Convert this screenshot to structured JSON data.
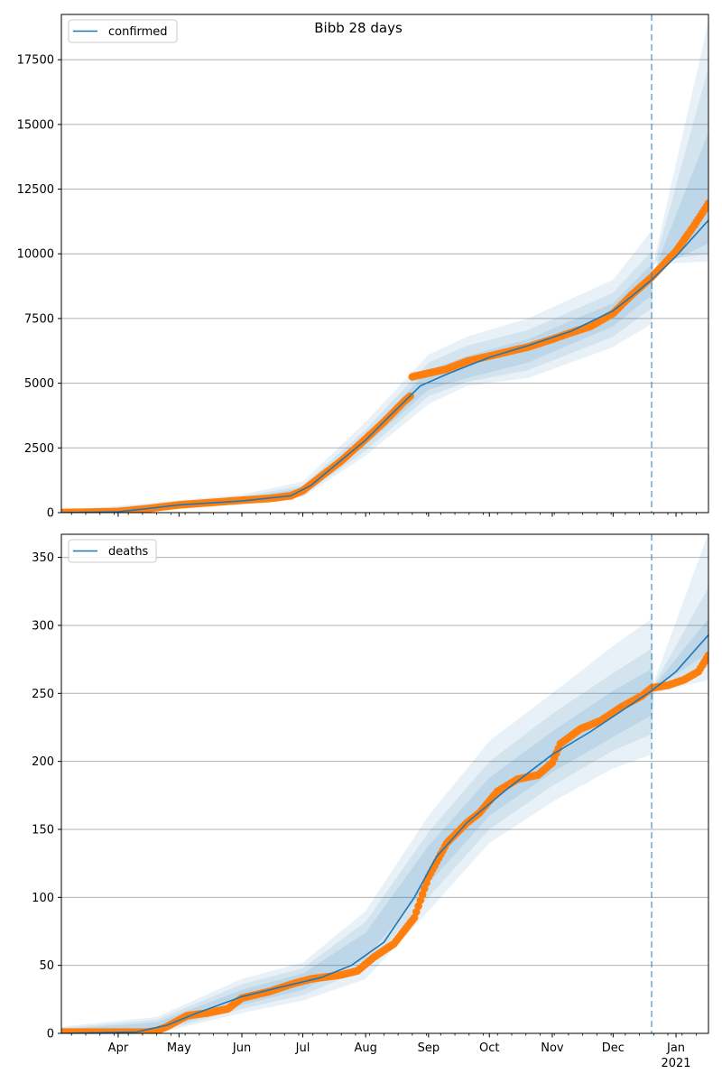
{
  "figure": {
    "title": "Bibb 28 days"
  },
  "x_axis": {
    "start_date": "2020-03-04",
    "end_date": "2021-01-17",
    "forecast_start": "2020-12-20",
    "ticks": [
      {
        "date": "2020-04-01",
        "label": "Apr"
      },
      {
        "date": "2020-05-01",
        "label": "May"
      },
      {
        "date": "2020-06-01",
        "label": "Jun"
      },
      {
        "date": "2020-07-01",
        "label": "Jul"
      },
      {
        "date": "2020-08-01",
        "label": "Aug"
      },
      {
        "date": "2020-09-01",
        "label": "Sep"
      },
      {
        "date": "2020-10-01",
        "label": "Oct"
      },
      {
        "date": "2020-11-01",
        "label": "Nov"
      },
      {
        "date": "2020-12-01",
        "label": "Dec"
      },
      {
        "date": "2021-01-01",
        "label": "Jan",
        "sublabel": "2021"
      }
    ]
  },
  "colors": {
    "model_line": "#1f77b4",
    "observed": "#ff7f0e",
    "band": "#1f77b4",
    "grid": "#b0b0b0",
    "forecast_line": "#1f77b4"
  },
  "chart_data": [
    {
      "type": "line",
      "legend": "confirmed",
      "legend_position": "top-left",
      "grid": "y",
      "ylim": [
        0,
        19250
      ],
      "yticks": [
        0,
        2500,
        5000,
        7500,
        10000,
        12500,
        15000,
        17500
      ],
      "model": [
        [
          "2020-03-04",
          0
        ],
        [
          "2020-04-01",
          30
        ],
        [
          "2020-04-15",
          150
        ],
        [
          "2020-05-01",
          300
        ],
        [
          "2020-06-01",
          450
        ],
        [
          "2020-06-25",
          650
        ],
        [
          "2020-07-05",
          1050
        ],
        [
          "2020-07-15",
          1700
        ],
        [
          "2020-08-01",
          2800
        ],
        [
          "2020-08-15",
          3900
        ],
        [
          "2020-08-28",
          4900
        ],
        [
          "2020-09-10",
          5350
        ],
        [
          "2020-10-01",
          6000
        ],
        [
          "2020-10-20",
          6450
        ],
        [
          "2020-11-10",
          7000
        ],
        [
          "2020-12-01",
          7800
        ],
        [
          "2020-12-10",
          8350
        ],
        [
          "2020-12-20",
          9000
        ],
        [
          "2021-01-01",
          9900
        ],
        [
          "2021-01-17",
          11300
        ]
      ],
      "bands": [
        {
          "lower": [
            [
              "2020-03-04",
              0
            ],
            [
              "2020-06-01",
              400
            ],
            [
              "2020-07-01",
              600
            ],
            [
              "2020-08-01",
              2200
            ],
            [
              "2020-09-01",
              4200
            ],
            [
              "2020-09-20",
              4900
            ],
            [
              "2020-10-20",
              5200
            ],
            [
              "2020-12-01",
              6400
            ],
            [
              "2020-12-20",
              7300
            ],
            [
              "2020-12-21",
              9600
            ],
            [
              "2021-01-17",
              9700
            ]
          ],
          "upper": [
            [
              "2020-03-04",
              60
            ],
            [
              "2020-06-01",
              700
            ],
            [
              "2020-07-01",
              1200
            ],
            [
              "2020-08-01",
              3500
            ],
            [
              "2020-09-01",
              6100
            ],
            [
              "2020-09-20",
              6800
            ],
            [
              "2020-10-20",
              7500
            ],
            [
              "2020-12-01",
              9000
            ],
            [
              "2020-12-20",
              10900
            ],
            [
              "2020-12-21",
              9700
            ],
            [
              "2021-01-17",
              19000
            ]
          ]
        },
        {
          "lower": [
            [
              "2020-03-04",
              0
            ],
            [
              "2020-06-01",
              420
            ],
            [
              "2020-07-01",
              650
            ],
            [
              "2020-08-01",
              2400
            ],
            [
              "2020-09-01",
              4500
            ],
            [
              "2020-09-20",
              5050
            ],
            [
              "2020-10-20",
              5500
            ],
            [
              "2020-12-01",
              6800
            ],
            [
              "2020-12-20",
              7900
            ],
            [
              "2020-12-21",
              9700
            ],
            [
              "2021-01-17",
              10000
            ]
          ],
          "upper": [
            [
              "2020-03-04",
              40
            ],
            [
              "2020-06-01",
              620
            ],
            [
              "2020-07-01",
              1050
            ],
            [
              "2020-08-01",
              3200
            ],
            [
              "2020-09-01",
              5800
            ],
            [
              "2020-09-20",
              6450
            ],
            [
              "2020-10-20",
              7050
            ],
            [
              "2020-12-01",
              8500
            ],
            [
              "2020-12-20",
              10100
            ],
            [
              "2020-12-21",
              9500
            ],
            [
              "2021-01-17",
              17200
            ]
          ]
        },
        {
          "lower": [
            [
              "2020-03-04",
              0
            ],
            [
              "2020-06-01",
              440
            ],
            [
              "2020-07-01",
              700
            ],
            [
              "2020-08-01",
              2600
            ],
            [
              "2020-09-01",
              4750
            ],
            [
              "2020-09-20",
              5200
            ],
            [
              "2020-10-20",
              5800
            ],
            [
              "2020-12-01",
              7200
            ],
            [
              "2020-12-20",
              8400
            ],
            [
              "2020-12-21",
              9400
            ],
            [
              "2021-01-17",
              10400
            ]
          ],
          "upper": [
            [
              "2020-03-04",
              25
            ],
            [
              "2020-06-01",
              560
            ],
            [
              "2020-07-01",
              950
            ],
            [
              "2020-08-01",
              3000
            ],
            [
              "2020-09-01",
              5500
            ],
            [
              "2020-09-20",
              6050
            ],
            [
              "2020-10-20",
              6700
            ],
            [
              "2020-12-01",
              8100
            ],
            [
              "2020-12-20",
              9600
            ],
            [
              "2020-12-21",
              9300
            ],
            [
              "2021-01-17",
              14700
            ]
          ]
        }
      ],
      "observed": [
        [
          "2020-03-04",
          5
        ],
        [
          "2020-04-01",
          40
        ],
        [
          "2020-04-15",
          150
        ],
        [
          "2020-05-01",
          300
        ],
        [
          "2020-05-15",
          380
        ],
        [
          "2020-06-01",
          480
        ],
        [
          "2020-06-15",
          550
        ],
        [
          "2020-06-25",
          650
        ],
        [
          "2020-07-01",
          850
        ],
        [
          "2020-07-10",
          1400
        ],
        [
          "2020-07-20",
          2000
        ],
        [
          "2020-08-01",
          2850
        ],
        [
          "2020-08-10",
          3500
        ],
        [
          "2020-08-20",
          4300
        ],
        [
          "2020-08-23",
          4500
        ],
        [
          "2020-08-24",
          5250
        ],
        [
          "2020-09-10",
          5550
        ],
        [
          "2020-09-20",
          5850
        ],
        [
          "2020-10-01",
          6050
        ],
        [
          "2020-10-20",
          6400
        ],
        [
          "2020-11-01",
          6700
        ],
        [
          "2020-11-10",
          6950
        ],
        [
          "2020-11-20",
          7200
        ],
        [
          "2020-12-01",
          7700
        ],
        [
          "2020-12-10",
          8400
        ],
        [
          "2020-12-20",
          9100
        ],
        [
          "2021-01-01",
          10100
        ],
        [
          "2021-01-10",
          11100
        ],
        [
          "2021-01-17",
          11950
        ]
      ]
    },
    {
      "type": "line",
      "legend": "deaths",
      "legend_position": "top-left",
      "grid": "y",
      "ylim": [
        0,
        367
      ],
      "yticks": [
        0,
        50,
        100,
        150,
        200,
        250,
        300,
        350
      ],
      "model": [
        [
          "2020-03-04",
          0
        ],
        [
          "2020-04-10",
          1
        ],
        [
          "2020-04-25",
          6
        ],
        [
          "2020-05-10",
          15
        ],
        [
          "2020-06-01",
          27
        ],
        [
          "2020-06-20",
          34
        ],
        [
          "2020-07-10",
          41
        ],
        [
          "2020-07-25",
          50
        ],
        [
          "2020-08-10",
          67
        ],
        [
          "2020-08-25",
          100
        ],
        [
          "2020-09-05",
          130
        ],
        [
          "2020-09-20",
          155
        ],
        [
          "2020-10-10",
          180
        ],
        [
          "2020-11-01",
          205
        ],
        [
          "2020-11-20",
          222
        ],
        [
          "2020-12-10",
          242
        ],
        [
          "2020-12-20",
          252
        ],
        [
          "2021-01-01",
          266
        ],
        [
          "2021-01-17",
          293
        ]
      ],
      "bands": [
        {
          "lower": [
            [
              "2020-03-04",
              0
            ],
            [
              "2020-04-20",
              0
            ],
            [
              "2020-06-01",
              15
            ],
            [
              "2020-07-01",
              24
            ],
            [
              "2020-08-01",
              40
            ],
            [
              "2020-09-01",
              90
            ],
            [
              "2020-10-01",
              140
            ],
            [
              "2020-11-01",
              170
            ],
            [
              "2020-12-01",
              195
            ],
            [
              "2020-12-20",
              205
            ],
            [
              "2020-12-21",
              250
            ],
            [
              "2021-01-17",
              260
            ]
          ],
          "upper": [
            [
              "2020-03-04",
              5
            ],
            [
              "2020-04-20",
              12
            ],
            [
              "2020-06-01",
              40
            ],
            [
              "2020-07-01",
              52
            ],
            [
              "2020-08-01",
              90
            ],
            [
              "2020-09-01",
              160
            ],
            [
              "2020-10-01",
              215
            ],
            [
              "2020-11-01",
              250
            ],
            [
              "2020-12-01",
              285
            ],
            [
              "2020-12-20",
              305
            ],
            [
              "2020-12-21",
              258
            ],
            [
              "2021-01-17",
              368
            ]
          ]
        },
        {
          "lower": [
            [
              "2020-03-04",
              0
            ],
            [
              "2020-04-20",
              1
            ],
            [
              "2020-06-01",
              18
            ],
            [
              "2020-07-01",
              28
            ],
            [
              "2020-08-01",
              48
            ],
            [
              "2020-09-01",
              100
            ],
            [
              "2020-10-01",
              150
            ],
            [
              "2020-11-01",
              182
            ],
            [
              "2020-12-01",
              208
            ],
            [
              "2020-12-20",
              220
            ],
            [
              "2020-12-21",
              252
            ],
            [
              "2021-01-17",
              270
            ]
          ],
          "upper": [
            [
              "2020-03-04",
              4
            ],
            [
              "2020-04-20",
              10
            ],
            [
              "2020-06-01",
              36
            ],
            [
              "2020-07-01",
              48
            ],
            [
              "2020-08-01",
              82
            ],
            [
              "2020-09-01",
              148
            ],
            [
              "2020-10-01",
              200
            ],
            [
              "2020-11-01",
              235
            ],
            [
              "2020-12-01",
              265
            ],
            [
              "2020-12-20",
              283
            ],
            [
              "2020-12-21",
              256
            ],
            [
              "2021-01-17",
              328
            ]
          ]
        },
        {
          "lower": [
            [
              "2020-03-04",
              0
            ],
            [
              "2020-04-20",
              2
            ],
            [
              "2020-06-01",
              21
            ],
            [
              "2020-07-01",
              32
            ],
            [
              "2020-08-01",
              55
            ],
            [
              "2020-09-01",
              110
            ],
            [
              "2020-10-01",
              160
            ],
            [
              "2020-11-01",
              192
            ],
            [
              "2020-12-01",
              218
            ],
            [
              "2020-12-20",
              234
            ],
            [
              "2020-12-21",
              253
            ],
            [
              "2021-01-17",
              280
            ]
          ],
          "upper": [
            [
              "2020-03-04",
              3
            ],
            [
              "2020-04-20",
              8
            ],
            [
              "2020-06-01",
              32
            ],
            [
              "2020-07-01",
              44
            ],
            [
              "2020-08-01",
              74
            ],
            [
              "2020-09-01",
              138
            ],
            [
              "2020-10-01",
              188
            ],
            [
              "2020-11-01",
              222
            ],
            [
              "2020-12-01",
              252
            ],
            [
              "2020-12-20",
              268
            ],
            [
              "2020-12-21",
              255
            ],
            [
              "2021-01-17",
              305
            ]
          ]
        }
      ],
      "observed": [
        [
          "2020-03-04",
          1
        ],
        [
          "2020-04-15",
          1
        ],
        [
          "2020-04-20",
          2
        ],
        [
          "2020-04-25",
          5
        ],
        [
          "2020-05-05",
          13
        ],
        [
          "2020-05-15",
          15
        ],
        [
          "2020-05-25",
          18
        ],
        [
          "2020-06-01",
          26
        ],
        [
          "2020-06-15",
          31
        ],
        [
          "2020-06-25",
          36
        ],
        [
          "2020-07-05",
          40
        ],
        [
          "2020-07-20",
          43
        ],
        [
          "2020-07-28",
          46
        ],
        [
          "2020-08-05",
          56
        ],
        [
          "2020-08-15",
          66
        ],
        [
          "2020-08-25",
          85
        ],
        [
          "2020-09-01",
          115
        ],
        [
          "2020-09-10",
          140
        ],
        [
          "2020-09-20",
          155
        ],
        [
          "2020-09-26",
          162
        ],
        [
          "2020-10-05",
          178
        ],
        [
          "2020-10-15",
          187
        ],
        [
          "2020-10-25",
          190
        ],
        [
          "2020-11-01",
          199
        ],
        [
          "2020-11-05",
          213
        ],
        [
          "2020-11-15",
          224
        ],
        [
          "2020-11-25",
          230
        ],
        [
          "2020-12-05",
          240
        ],
        [
          "2020-12-15",
          248
        ],
        [
          "2020-12-20",
          254
        ],
        [
          "2020-12-28",
          256
        ],
        [
          "2021-01-05",
          260
        ],
        [
          "2021-01-12",
          266
        ],
        [
          "2021-01-17",
          278
        ]
      ]
    }
  ]
}
